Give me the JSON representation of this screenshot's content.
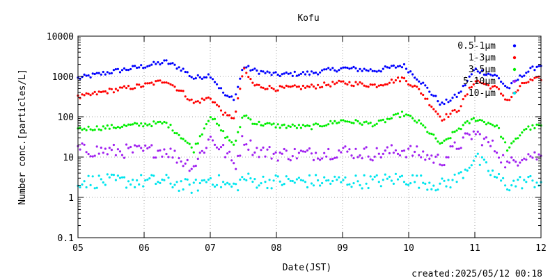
{
  "chart_data": {
    "type": "scatter",
    "title": "Kofu",
    "xlabel": "Date(JST)",
    "ylabel": "Number conc.[particles/L]",
    "footer": "created:2025/05/12 00:18",
    "y_scale": "log",
    "ylim": [
      0.1,
      10000
    ],
    "xlim": [
      "2025-05-05",
      "2025-05-12"
    ],
    "y_ticks": [
      "0.1",
      "1",
      "10",
      "100",
      "1000",
      "10000"
    ],
    "x_ticks": [
      "05",
      "06",
      "07",
      "08",
      "09",
      "10",
      "11",
      "12"
    ],
    "grid": true,
    "legend_position": "top-right",
    "series": [
      {
        "name": "0.5-1μm",
        "color": "#0000ff",
        "x": [
          "2025-05-05",
          "2025-05-05T12:00",
          "2025-05-06",
          "2025-05-06T08:00",
          "2025-05-06T14:00",
          "2025-05-06T18:00",
          "2025-05-07",
          "2025-05-07T06:00",
          "2025-05-07T09:00",
          "2025-05-07T12:00",
          "2025-05-07T16:00",
          "2025-05-08",
          "2025-05-08T12:00",
          "2025-05-09",
          "2025-05-09T12:00",
          "2025-05-09T22:00",
          "2025-05-10T04:00",
          "2025-05-10T12:00",
          "2025-05-10T18:00",
          "2025-05-11",
          "2025-05-11T08:00",
          "2025-05-11T12:00",
          "2025-05-11T18:00",
          "2025-05-12"
        ],
        "y": [
          900,
          1300,
          1800,
          2300,
          1500,
          900,
          1100,
          300,
          300,
          1800,
          1400,
          1100,
          1200,
          1600,
          1400,
          1900,
          800,
          200,
          350,
          1500,
          1000,
          500,
          1200,
          2000
        ]
      },
      {
        "name": "1-3μm",
        "color": "#ff0000",
        "x": [
          "2025-05-05",
          "2025-05-05T12:00",
          "2025-05-06",
          "2025-05-06T08:00",
          "2025-05-06T14:00",
          "2025-05-06T18:00",
          "2025-05-07",
          "2025-05-07T06:00",
          "2025-05-07T09:00",
          "2025-05-07T12:00",
          "2025-05-07T16:00",
          "2025-05-08",
          "2025-05-08T12:00",
          "2025-05-09",
          "2025-05-09T12:00",
          "2025-05-09T22:00",
          "2025-05-10T04:00",
          "2025-05-10T12:00",
          "2025-05-10T18:00",
          "2025-05-11",
          "2025-05-11T08:00",
          "2025-05-11T12:00",
          "2025-05-11T18:00",
          "2025-05-12"
        ],
        "y": [
          300,
          450,
          600,
          800,
          400,
          220,
          300,
          100,
          100,
          1500,
          600,
          500,
          550,
          700,
          600,
          900,
          450,
          90,
          150,
          800,
          500,
          250,
          700,
          900
        ]
      },
      {
        "name": "3-5μm",
        "color": "#00ee00",
        "x": [
          "2025-05-05",
          "2025-05-05T12:00",
          "2025-05-06",
          "2025-05-06T08:00",
          "2025-05-06T14:00",
          "2025-05-06T18:00",
          "2025-05-07",
          "2025-05-07T06:00",
          "2025-05-07T09:00",
          "2025-05-07T12:00",
          "2025-05-07T16:00",
          "2025-05-08",
          "2025-05-08T12:00",
          "2025-05-09",
          "2025-05-09T12:00",
          "2025-05-09T22:00",
          "2025-05-10T04:00",
          "2025-05-10T12:00",
          "2025-05-10T18:00",
          "2025-05-11",
          "2025-05-11T08:00",
          "2025-05-11T12:00",
          "2025-05-11T18:00",
          "2025-05-12"
        ],
        "y": [
          50,
          55,
          65,
          70,
          30,
          15,
          110,
          30,
          20,
          120,
          70,
          60,
          55,
          80,
          65,
          120,
          70,
          20,
          50,
          90,
          60,
          15,
          50,
          60
        ]
      },
      {
        "name": "5-10μm",
        "color": "#a020f0",
        "x": [
          "2025-05-05",
          "2025-05-05T12:00",
          "2025-05-06",
          "2025-05-06T08:00",
          "2025-05-06T14:00",
          "2025-05-06T18:00",
          "2025-05-07",
          "2025-05-07T06:00",
          "2025-05-07T09:00",
          "2025-05-07T12:00",
          "2025-05-07T16:00",
          "2025-05-08",
          "2025-05-08T12:00",
          "2025-05-09",
          "2025-05-09T12:00",
          "2025-05-09T22:00",
          "2025-05-10T04:00",
          "2025-05-10T12:00",
          "2025-05-10T18:00",
          "2025-05-11",
          "2025-05-11T08:00",
          "2025-05-11T12:00",
          "2025-05-11T18:00",
          "2025-05-12"
        ],
        "y": [
          15,
          14,
          14,
          15,
          8,
          6,
          30,
          12,
          6,
          30,
          15,
          12,
          12,
          14,
          12,
          15,
          12,
          8,
          20,
          40,
          15,
          6,
          12,
          10
        ]
      },
      {
        "name": "10-μm",
        "color": "#00e5ee",
        "x": [
          "2025-05-05",
          "2025-05-05T12:00",
          "2025-05-06",
          "2025-05-06T08:00",
          "2025-05-06T14:00",
          "2025-05-06T18:00",
          "2025-05-07",
          "2025-05-07T06:00",
          "2025-05-07T09:00",
          "2025-05-07T12:00",
          "2025-05-07T16:00",
          "2025-05-08",
          "2025-05-08T12:00",
          "2025-05-09",
          "2025-05-09T12:00",
          "2025-05-09T22:00",
          "2025-05-10T04:00",
          "2025-05-10T12:00",
          "2025-05-10T18:00",
          "2025-05-11",
          "2025-05-11T08:00",
          "2025-05-11T12:00",
          "2025-05-11T18:00",
          "2025-05-12"
        ],
        "y": [
          2.5,
          2.5,
          2.5,
          2.5,
          2,
          1.8,
          3,
          2,
          1.8,
          3,
          2.5,
          2.5,
          2.5,
          2.5,
          2.5,
          3,
          2.5,
          2,
          3,
          10,
          3,
          2,
          2.5,
          2.5
        ]
      }
    ]
  }
}
